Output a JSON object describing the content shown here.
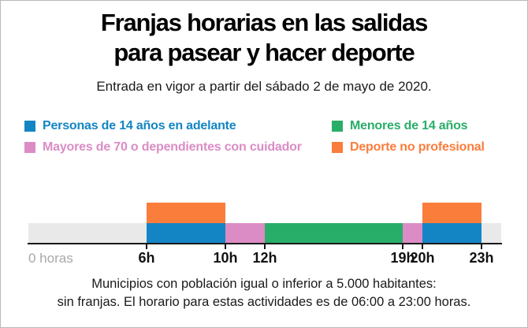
{
  "chart_data": {
    "type": "timeline-bar",
    "title": "Franjas horarias en las salidas para pasear y hacer deporte",
    "title_lines": [
      "Franjas horarias en las salidas",
      "para pasear y hacer deporte"
    ],
    "subtitle": "Entrada en vigor a partir del sábado 2 de mayo de 2020.",
    "footnote_lines": [
      "Municipios con población igual o inferior a 5.000 habitantes:",
      "sin franjas. El horario para estas actividades es de 06:00 a 23:00 horas."
    ],
    "x_domain_hours": [
      0,
      24
    ],
    "origin_label": "0 horas",
    "axis_ticks": [
      {
        "hour": 6,
        "label": "6h"
      },
      {
        "hour": 10,
        "label": "10h"
      },
      {
        "hour": 12,
        "label": "12h"
      },
      {
        "hour": 19,
        "label": "19h"
      },
      {
        "hour": 20,
        "label": "20h"
      },
      {
        "hour": 23,
        "label": "23h"
      }
    ],
    "base_track": {
      "start": 0,
      "end": 24,
      "color_key": "track_gray"
    },
    "rows": {
      "upper": [
        {
          "start": 6,
          "end": 10,
          "series": "Deporte no profesional",
          "color_key": "orange"
        },
        {
          "start": 20,
          "end": 23,
          "series": "Deporte no profesional",
          "color_key": "orange"
        }
      ],
      "main": [
        {
          "start": 6,
          "end": 10,
          "series": "Personas de 14 años en adelante",
          "color_key": "blue"
        },
        {
          "start": 10,
          "end": 12,
          "series": "Mayores de 70 o dependientes con cuidador",
          "color_key": "pink"
        },
        {
          "start": 12,
          "end": 19,
          "series": "Menores de 14 años",
          "color_key": "green"
        },
        {
          "start": 19,
          "end": 20,
          "series": "Mayores de 70 o dependientes con cuidador",
          "color_key": "pink"
        },
        {
          "start": 20,
          "end": 23,
          "series": "Personas de 14 años en adelante",
          "color_key": "blue"
        }
      ]
    },
    "legend": {
      "items": [
        {
          "label": "Personas de 14 años en adelante",
          "color_key": "blue"
        },
        {
          "label": "Menores de 14 años",
          "color_key": "green"
        },
        {
          "label": "Mayores de 70 o dependientes con cuidador",
          "color_key": "pink"
        },
        {
          "label": "Deporte no profesional",
          "color_key": "orange"
        }
      ]
    },
    "colors": {
      "blue": "#1385c4",
      "green": "#28ae68",
      "pink": "#db8cc5",
      "orange": "#fa7d3c",
      "track_gray": "#e9e9e9",
      "axis": "#1a1a1a",
      "muted_label": "#a8a8a8"
    }
  }
}
